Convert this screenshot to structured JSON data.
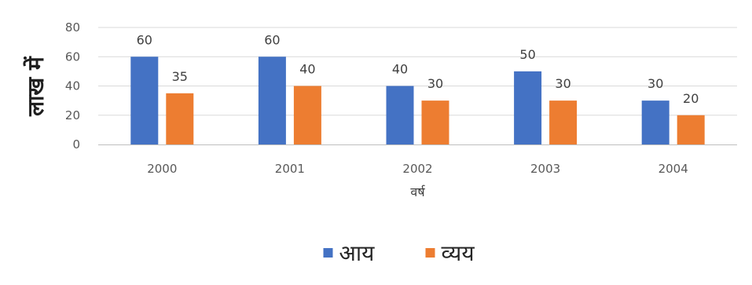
{
  "chart_data": {
    "type": "bar",
    "categories": [
      "2000",
      "2001",
      "2002",
      "2003",
      "2004"
    ],
    "series": [
      {
        "name": "आय",
        "values": [
          60,
          60,
          40,
          50,
          30
        ]
      },
      {
        "name": "व्यय",
        "values": [
          35,
          40,
          30,
          30,
          20
        ]
      }
    ],
    "title": "",
    "xlabel": "वर्ष",
    "ylabel": "लाख में",
    "ylim": [
      0,
      80
    ],
    "yticks": [
      0,
      20,
      40,
      60,
      80
    ],
    "grid": true,
    "legend_position": "bottom",
    "colors": {
      "series_1": "#4472C4",
      "series_2": "#ED7D31",
      "gridline": "#D9D9D9",
      "axis": "#BFBFBF"
    }
  }
}
